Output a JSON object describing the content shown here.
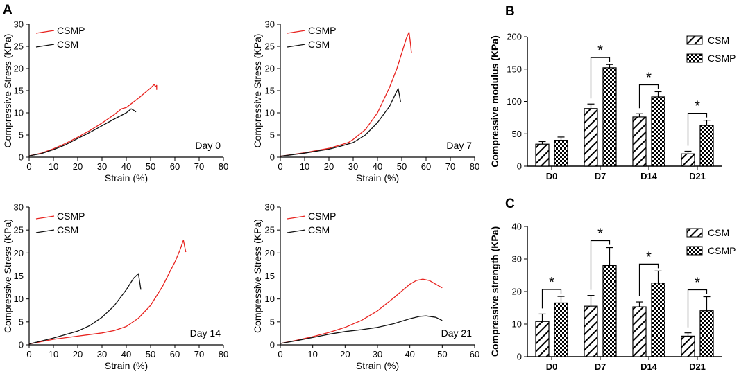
{
  "colors": {
    "csmp_line": "#e8231f",
    "csm_line": "#111111",
    "axis": "#000000",
    "background": "#ffffff"
  },
  "panel_letters": {
    "a": "A",
    "b": "B",
    "c": "C"
  },
  "chart_data": [
    {
      "id": "A1",
      "type": "line",
      "xlabel": "Strain (%)",
      "ylabel": "Compressive Stress (KPa)",
      "xlim": [
        0,
        80
      ],
      "ylim": [
        0,
        30
      ],
      "xticks": [
        0,
        10,
        20,
        30,
        40,
        50,
        60,
        70,
        80
      ],
      "yticks": [
        0,
        5,
        10,
        15,
        20,
        25,
        30
      ],
      "annotation": "Day 0",
      "legend": [
        "CSMP",
        "CSM"
      ],
      "series": [
        {
          "name": "CSMP",
          "color": "#e8231f",
          "x": [
            0,
            5,
            10,
            15,
            20,
            25,
            30,
            35,
            38,
            40,
            45,
            50,
            51.5,
            52,
            52.5,
            52.5
          ],
          "y": [
            0.3,
            0.9,
            1.9,
            3.1,
            4.5,
            6.0,
            7.7,
            9.6,
            10.9,
            11.2,
            13.3,
            15.6,
            16.4,
            15.9,
            16.2,
            15.2
          ]
        },
        {
          "name": "CSM",
          "color": "#111111",
          "x": [
            0,
            5,
            10,
            15,
            20,
            25,
            30,
            35,
            40,
            42,
            43,
            44
          ],
          "y": [
            0.3,
            0.8,
            1.7,
            2.8,
            4.2,
            5.6,
            7.1,
            8.6,
            10.0,
            10.9,
            10.6,
            10.2
          ]
        }
      ]
    },
    {
      "id": "A2",
      "type": "line",
      "xlabel": "Strain (%)",
      "ylabel": "Compressive Stress (KPa)",
      "xlim": [
        0,
        80
      ],
      "ylim": [
        0,
        30
      ],
      "xticks": [
        0,
        10,
        20,
        30,
        40,
        50,
        60,
        70,
        80
      ],
      "yticks": [
        0,
        5,
        10,
        15,
        20,
        25,
        30
      ],
      "annotation": "Day 7",
      "legend": [
        "CSMP",
        "CSM"
      ],
      "series": [
        {
          "name": "CSMP",
          "color": "#e8231f",
          "x": [
            0,
            10,
            20,
            25,
            28,
            30,
            35,
            40,
            45,
            48,
            50,
            52,
            53,
            53.5,
            54
          ],
          "y": [
            0.2,
            1.0,
            2.0,
            2.8,
            3.3,
            4.0,
            6.2,
            10.0,
            15.8,
            20.0,
            23.5,
            27.0,
            28.2,
            26.0,
            23.5
          ]
        },
        {
          "name": "CSM",
          "color": "#111111",
          "x": [
            0,
            10,
            20,
            25,
            30,
            35,
            40,
            45,
            47,
            48.5,
            49.5
          ],
          "y": [
            0.2,
            0.9,
            1.8,
            2.5,
            3.3,
            5.0,
            7.8,
            11.5,
            13.8,
            15.5,
            12.5
          ]
        }
      ]
    },
    {
      "id": "A3",
      "type": "line",
      "xlabel": "Strain (%)",
      "ylabel": "Compressive Stress (KPa)",
      "xlim": [
        0,
        80
      ],
      "ylim": [
        0,
        30
      ],
      "xticks": [
        0,
        10,
        20,
        30,
        40,
        50,
        60,
        70,
        80
      ],
      "yticks": [
        0,
        5,
        10,
        15,
        20,
        25,
        30
      ],
      "annotation": "Day 14",
      "legend": [
        "CSMP",
        "CSM"
      ],
      "series": [
        {
          "name": "CSMP",
          "color": "#e8231f",
          "x": [
            0,
            10,
            20,
            30,
            35,
            40,
            45,
            50,
            55,
            58,
            60,
            62,
            63.5,
            64,
            64.5
          ],
          "y": [
            0.2,
            1.2,
            1.9,
            2.6,
            3.1,
            4.0,
            5.8,
            8.6,
            12.8,
            16.0,
            18.0,
            20.5,
            22.8,
            21.5,
            20.2
          ]
        },
        {
          "name": "CSM",
          "color": "#111111",
          "x": [
            0,
            10,
            20,
            25,
            30,
            35,
            40,
            43,
            45,
            46
          ],
          "y": [
            0.2,
            1.5,
            3.0,
            4.2,
            6.0,
            8.5,
            12.0,
            14.5,
            15.5,
            12.0
          ]
        }
      ]
    },
    {
      "id": "A4",
      "type": "line",
      "xlabel": "Strain (%)",
      "ylabel": "Compressive Stress (KPa)",
      "xlim": [
        0,
        60
      ],
      "ylim": [
        0,
        30
      ],
      "xticks": [
        0,
        10,
        20,
        30,
        40,
        50,
        60
      ],
      "yticks": [
        0,
        5,
        10,
        15,
        20,
        25,
        30
      ],
      "annotation": "Day 21",
      "legend": [
        "CSMP",
        "CSM"
      ],
      "series": [
        {
          "name": "CSMP",
          "color": "#e8231f",
          "x": [
            0,
            5,
            10,
            15,
            20,
            25,
            30,
            35,
            40,
            42,
            44,
            46,
            48,
            50
          ],
          "y": [
            0.3,
            1.0,
            1.8,
            2.7,
            3.8,
            5.3,
            7.4,
            10.2,
            13.2,
            14.0,
            14.3,
            14.0,
            13.2,
            12.4
          ]
        },
        {
          "name": "CSM",
          "color": "#111111",
          "x": [
            0,
            5,
            10,
            15,
            20,
            25,
            30,
            35,
            40,
            43,
            45,
            48,
            50
          ],
          "y": [
            0.3,
            0.9,
            1.6,
            2.3,
            2.9,
            3.3,
            3.8,
            4.6,
            5.7,
            6.2,
            6.3,
            6.0,
            5.3
          ]
        }
      ]
    },
    {
      "id": "B",
      "type": "bar",
      "ylabel": "Compressive modulus (KPa)",
      "categories": [
        "D0",
        "D7",
        "D14",
        "D21"
      ],
      "ylim": [
        0,
        200
      ],
      "yticks": [
        0,
        50,
        100,
        150,
        200
      ],
      "series": [
        {
          "name": "CSM",
          "values": [
            34,
            89,
            76,
            19
          ],
          "errors": [
            4,
            7,
            5,
            4
          ]
        },
        {
          "name": "CSMP",
          "values": [
            40,
            152,
            107,
            63
          ],
          "errors": [
            5,
            5,
            8,
            8
          ]
        }
      ],
      "significance": [
        "",
        "*",
        "*",
        "*"
      ]
    },
    {
      "id": "C",
      "type": "bar",
      "ylabel": "Compressive strength (KPa)",
      "categories": [
        "D0",
        "D7",
        "D14",
        "D21"
      ],
      "ylim": [
        0,
        40
      ],
      "yticks": [
        0,
        10,
        20,
        30,
        40
      ],
      "series": [
        {
          "name": "CSM",
          "values": [
            10.8,
            15.5,
            15.3,
            6.3
          ],
          "errors": [
            2.3,
            3.3,
            1.5,
            1.0
          ]
        },
        {
          "name": "CSMP",
          "values": [
            16.5,
            28.0,
            22.6,
            14.1
          ],
          "errors": [
            2.0,
            5.5,
            3.7,
            4.3
          ]
        }
      ],
      "significance": [
        "*",
        "*",
        "*",
        "*"
      ]
    }
  ]
}
